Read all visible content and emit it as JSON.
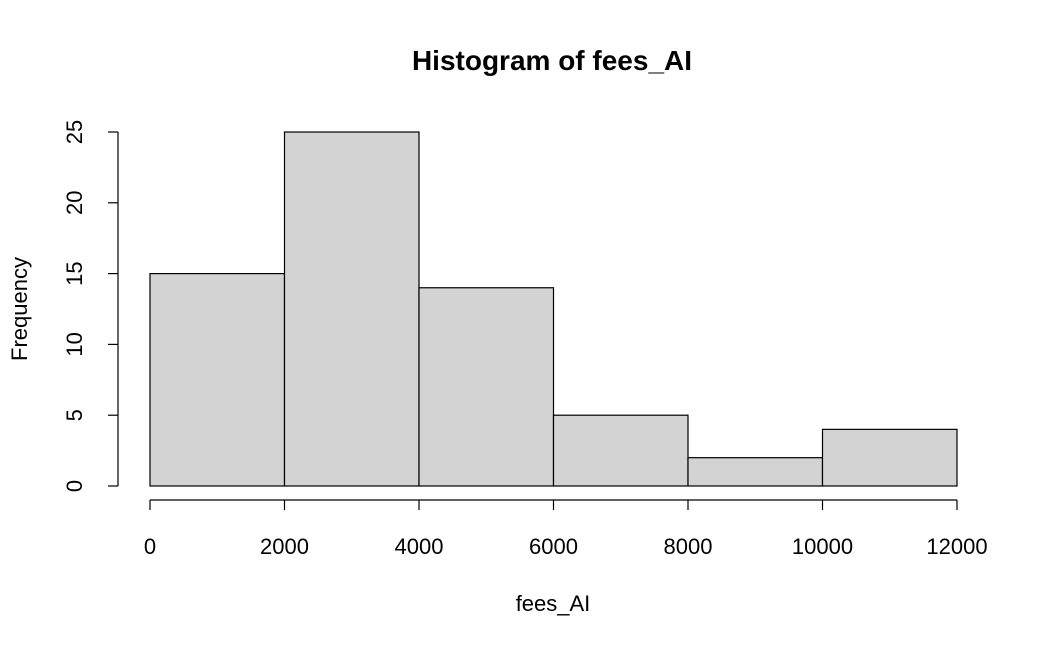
{
  "chart_data": {
    "type": "bar",
    "title": "Histogram of fees_AI",
    "xlabel": "fees_AI",
    "ylabel": "Frequency",
    "bins": [
      {
        "from": 0,
        "to": 2000,
        "count": 15
      },
      {
        "from": 2000,
        "to": 4000,
        "count": 25
      },
      {
        "from": 4000,
        "to": 6000,
        "count": 14
      },
      {
        "from": 6000,
        "to": 8000,
        "count": 5
      },
      {
        "from": 8000,
        "to": 10000,
        "count": 2
      },
      {
        "from": 10000,
        "to": 12000,
        "count": 4
      }
    ],
    "xlim": [
      0,
      12000
    ],
    "ylim": [
      0,
      25
    ],
    "x_ticks": [
      "0",
      "2000",
      "4000",
      "6000",
      "8000",
      "10000",
      "12000"
    ],
    "y_ticks": [
      "0",
      "5",
      "10",
      "15",
      "20",
      "25"
    ],
    "bar_color": "#d3d3d3",
    "grid": false,
    "legend": "none"
  }
}
